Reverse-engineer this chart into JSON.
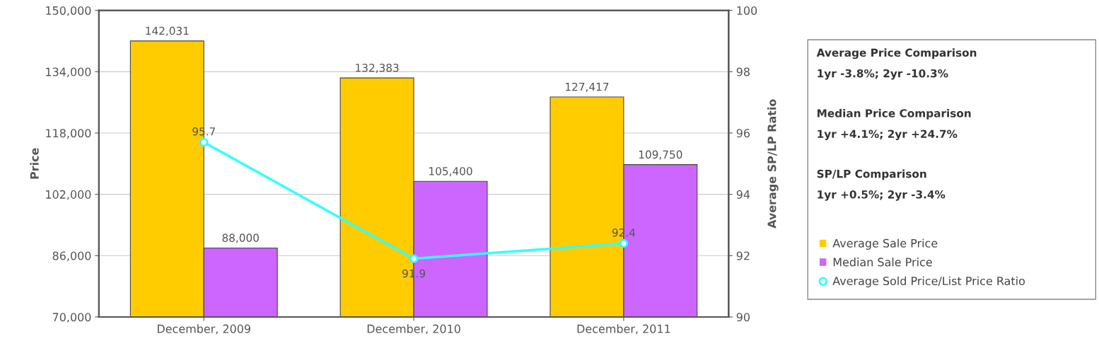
{
  "chart_data": {
    "type": "bar",
    "categories": [
      "December, 2009",
      "December, 2010",
      "December, 2011"
    ],
    "ylabel": "Price",
    "y2label": "Average SP/LP Ratio",
    "series": [
      {
        "name": "Average Sale Price",
        "color": "#ffcc00",
        "values": [
          142031,
          132383,
          127417
        ],
        "value_labels": [
          "142,031",
          "132,383",
          "127,417"
        ]
      },
      {
        "name": "Median Sale Price",
        "color": "#cc66ff",
        "values": [
          88000,
          105400,
          109750
        ],
        "value_labels": [
          "88,000",
          "105,400",
          "109,750"
        ]
      },
      {
        "name": "Average Sold Price/List Price Ratio",
        "type": "line",
        "axis": "y2",
        "color": "#33ffff",
        "marker": "circle",
        "values": [
          95.7,
          91.9,
          92.4
        ],
        "value_labels": [
          "95.7",
          "91.9",
          "92.4"
        ]
      }
    ],
    "ylim": [
      70000,
      150000
    ],
    "yticks": [
      {
        "value": 70000,
        "label": "70,000"
      },
      {
        "value": 86000,
        "label": "86,000"
      },
      {
        "value": 102000,
        "label": "102,000"
      },
      {
        "value": 118000,
        "label": "118,000"
      },
      {
        "value": 134000,
        "label": "134,000"
      },
      {
        "value": 150000,
        "label": "150,000"
      }
    ],
    "y2lim": [
      90,
      100
    ],
    "y2ticks": [
      90,
      92,
      94,
      96,
      98,
      100
    ],
    "grid": "y",
    "legend": "right",
    "annotations": [
      "Average Price Comparison",
      "1yr -3.8%; 2yr -10.3%",
      "Median Price Comparison",
      "1yr +4.1%; 2yr +24.7%",
      "SP/LP Comparison",
      "1yr +0.5%; 2yr -3.4%"
    ]
  }
}
